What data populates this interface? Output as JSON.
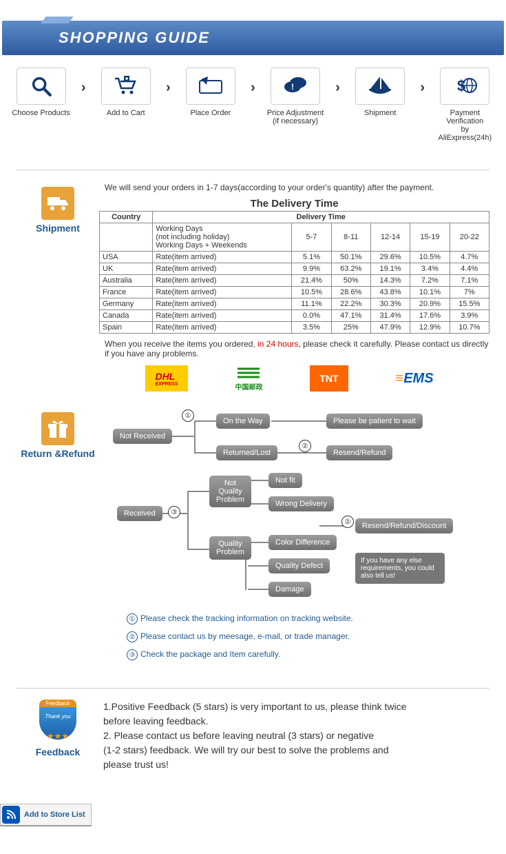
{
  "banner": {
    "title": "SHOPPING GUIDE"
  },
  "steps": [
    {
      "label": "Choose Products"
    },
    {
      "label": "Add to Cart"
    },
    {
      "label": "Place Order"
    },
    {
      "label": "Price Adjustment\n(if necessary)"
    },
    {
      "label": "Shipment"
    },
    {
      "label": "Payment Verification\nby AliExpress(24h)"
    }
  ],
  "shipment": {
    "side": "Shipment",
    "intro": "We will send your orders in 1-7 days(according to your order's quantity) after the payment.",
    "table_title": "The Delivery Time",
    "head_country": "Country",
    "head_delivery": "Delivery Time",
    "subhead": "Working Days\n(not including holiday)\nWorking Days + Weekends",
    "ranges": [
      "5-7",
      "8-11",
      "12-14",
      "15-19",
      "20-22"
    ],
    "rate_label": "Rate(item arrived)",
    "rows": [
      {
        "c": "USA",
        "v": [
          "5.1%",
          "50.1%",
          "29.6%",
          "10.5%",
          "4.7%"
        ]
      },
      {
        "c": "UK",
        "v": [
          "9.9%",
          "63.2%",
          "19.1%",
          "3.4%",
          "4.4%"
        ]
      },
      {
        "c": "Australia",
        "v": [
          "21.4%",
          "50%",
          "14.3%",
          "7.2%",
          "7.1%"
        ]
      },
      {
        "c": "France",
        "v": [
          "10.5%",
          "28.6%",
          "43.8%",
          "10.1%",
          "7%"
        ]
      },
      {
        "c": "Germany",
        "v": [
          "11.1%",
          "22.2%",
          "30.3%",
          "20.9%",
          "15.5%"
        ]
      },
      {
        "c": "Canada",
        "v": [
          "0.0%",
          "47.1%",
          "31.4%",
          "17.6%",
          "3.9%"
        ]
      },
      {
        "c": "Spain",
        "v": [
          "3.5%",
          "25%",
          "47.9%",
          "12.9%",
          "10.7%"
        ]
      }
    ],
    "note_a": "When you receive the items you ordered, ",
    "note_red": "in 24 hours",
    "note_b": ", please check it carefully. Please contact us directly if you have any problems.",
    "logos": {
      "dhl": "DHL",
      "dhl_sub": "EXPRESS",
      "cnpost": "中国邮政",
      "tnt": "TNT",
      "ems": "EMS"
    }
  },
  "return": {
    "side": "Return &Refund",
    "nodes": {
      "not_received": "Not Received",
      "received": "Received",
      "on_way": "On the Way",
      "returned": "Returned/Lost",
      "wait": "Please be patient to wait",
      "resend": "Resend/Refund",
      "nqp": "Not\nQuality\nProblem",
      "qp": "Quality\nProblem",
      "not_fit": "Not fit",
      "wrong": "Wrong Delivery",
      "color": "Color Difference",
      "defect": "Quality Defect",
      "damage": "Damage",
      "discount": "Resend/Refund/Discount",
      "callout": "If you have any else requirements, you could also tell us!"
    },
    "legend": [
      "Please check the tracking information on tracking website.",
      "Please contact us by meesage, e-mail, or trade manager.",
      "Check the package and Item carefully."
    ]
  },
  "feedback": {
    "side": "Feedback",
    "ribbon": "Feedback",
    "thankyou": "Thank you",
    "lines": [
      "1.Positive Feedback (5 stars) is very important to us, please think twice",
      "  before leaving feedback.",
      "2. Please contact us before leaving neutral (3 stars) or negative",
      "(1-2 stars) feedback. We will try our best to solve the problems and",
      "  please trust us!"
    ]
  },
  "store_btn": "Add to Store List",
  "colors": {
    "side_ship": "#e8a23a",
    "side_return": "#e8a23a",
    "blue": "#1f5a8e",
    "icon": "#123a73"
  }
}
